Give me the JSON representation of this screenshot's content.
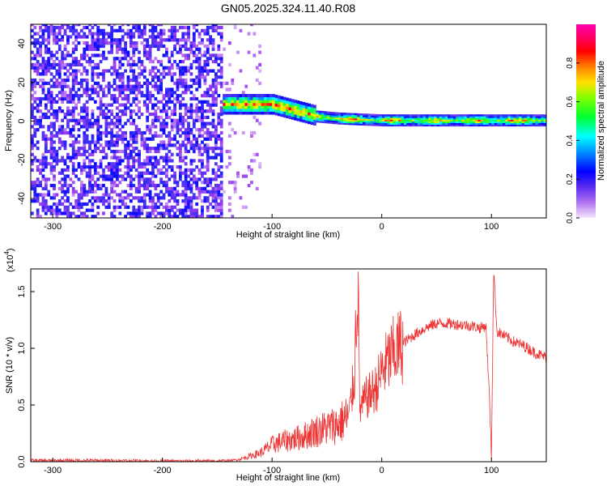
{
  "chart_data": [
    {
      "type": "heatmap",
      "title": "GN05.2025.324.11.40.R08",
      "xlabel": "Height of straight line (km)",
      "ylabel": "Frequency (Hz)",
      "xlim": [
        -320,
        150
      ],
      "ylim": [
        -50,
        50
      ],
      "xticks": [
        -300,
        -200,
        -100,
        0,
        100
      ],
      "yticks": [
        -40,
        -20,
        0,
        20,
        40
      ],
      "colorbar": {
        "label": "Normalized spectral amplitude",
        "range": [
          0.0,
          1.0
        ],
        "ticks": [
          "0.0",
          "0.2",
          "0.4",
          "0.6",
          "0.8"
        ],
        "colormap": [
          "#f0ddf8",
          "#9a3cf0",
          "#3a2ff5",
          "#0000ff",
          "#00a5ff",
          "#00ffff",
          "#00ff40",
          "#50ff00",
          "#d8ff00",
          "#ffd000",
          "#ff7000",
          "#ff0000",
          "#ff0050",
          "#ff00a0"
        ]
      },
      "regions": [
        {
          "name": "noise",
          "x": [
            -320,
            -145
          ],
          "y": [
            -50,
            50
          ],
          "amplitude": 0.2
        },
        {
          "name": "sparse",
          "x": [
            -145,
            -110
          ],
          "y": [
            -50,
            50
          ],
          "amplitude": 0.05
        },
        {
          "name": "signal",
          "x": [
            -145,
            150
          ],
          "center_freq_hz": [
            [
              -145,
              8
            ],
            [
              -100,
              8
            ],
            [
              -80,
              5
            ],
            [
              -60,
              2
            ],
            [
              -40,
              1
            ],
            [
              0,
              0
            ],
            [
              150,
              0
            ]
          ],
          "peak_amplitude": 0.9
        }
      ]
    },
    {
      "type": "line",
      "xlabel": "Height of straight line (km)",
      "ylabel": "SNR (10 * v/v)",
      "y_multiplier": "(x10",
      "y_multiplier_exp": "4",
      "xlim": [
        -320,
        150
      ],
      "ylim": [
        0,
        1.7
      ],
      "xticks": [
        -300,
        -200,
        -100,
        0,
        100
      ],
      "yticks": [
        "0.0",
        "0.5",
        "1.0",
        "1.5"
      ],
      "line_color": "#ee3333",
      "series": [
        {
          "x": [
            -320,
            -300,
            -250,
            -200,
            -150,
            -140,
            -130,
            -120,
            -110,
            -100,
            -90,
            -80,
            -70,
            -60,
            -50,
            -40,
            -30,
            -25,
            -22,
            -20,
            -15,
            -10,
            -5,
            0,
            10,
            20,
            30,
            40,
            50,
            60,
            70,
            80,
            90,
            95,
            98,
            100,
            102,
            105,
            110,
            120,
            130,
            140,
            150
          ],
          "y": [
            0.01,
            0.01,
            0.01,
            0.005,
            0.005,
            0.01,
            0.02,
            0.05,
            0.08,
            0.15,
            0.18,
            0.2,
            0.23,
            0.27,
            0.3,
            0.33,
            0.4,
            0.75,
            1.7,
            0.45,
            0.55,
            0.6,
            0.65,
            0.8,
            0.95,
            1.05,
            1.12,
            1.18,
            1.22,
            1.22,
            1.21,
            1.2,
            1.18,
            1.2,
            0.6,
            0.05,
            1.7,
            1.15,
            1.12,
            1.06,
            1.02,
            0.96,
            0.92
          ]
        }
      ]
    }
  ]
}
